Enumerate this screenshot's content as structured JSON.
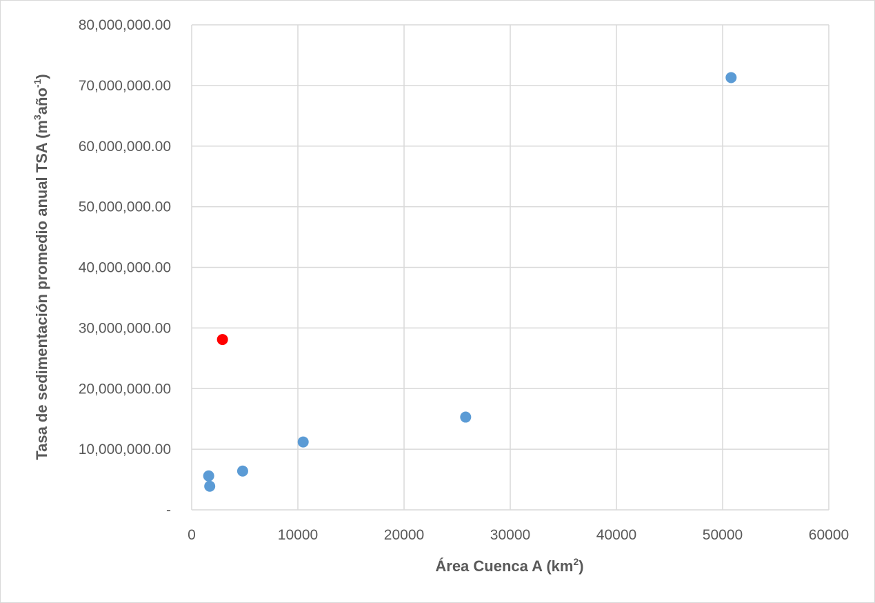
{
  "chart_data": {
    "type": "scatter",
    "xlabel": {
      "text": "Área Cuenca A (km",
      "sup": "2",
      "end": ")"
    },
    "ylabel": {
      "text": "Tasa de sedimentación promedio anual TSA (m",
      "sup1": "3",
      "mid": "año",
      "sup2": "-1",
      "end": ")"
    },
    "xlim": [
      0,
      60000
    ],
    "ylim": [
      0,
      80000000
    ],
    "x_ticks": [
      0,
      10000,
      20000,
      30000,
      40000,
      50000,
      60000
    ],
    "x_tick_labels": [
      "0",
      "10000",
      "20000",
      "30000",
      "40000",
      "50000",
      "60000"
    ],
    "y_ticks": [
      0,
      10000000,
      20000000,
      30000000,
      40000000,
      50000000,
      60000000,
      70000000,
      80000000
    ],
    "y_tick_labels": [
      "-",
      "10,000,000.00",
      "20,000,000.00",
      "30,000,000.00",
      "40,000,000.00",
      "50,000,000.00",
      "60,000,000.00",
      "70,000,000.00",
      "80,000,000.00"
    ],
    "grid": true,
    "legend": "none",
    "points": [
      {
        "x": 1600,
        "y": 5600000,
        "color": "#5b9bd5"
      },
      {
        "x": 1700,
        "y": 3900000,
        "color": "#5b9bd5"
      },
      {
        "x": 4800,
        "y": 6400000,
        "color": "#5b9bd5"
      },
      {
        "x": 10500,
        "y": 11200000,
        "color": "#5b9bd5"
      },
      {
        "x": 25800,
        "y": 15300000,
        "color": "#5b9bd5"
      },
      {
        "x": 50800,
        "y": 71300000,
        "color": "#5b9bd5"
      },
      {
        "x": 2900,
        "y": 28100000,
        "color": "#ff0000"
      }
    ]
  }
}
